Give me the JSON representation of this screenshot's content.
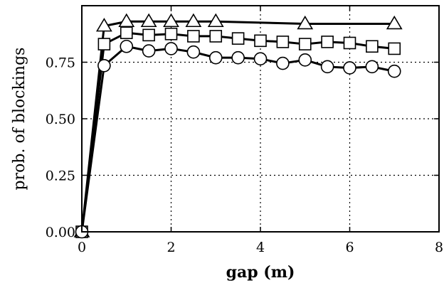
{
  "chart_data": {
    "type": "line",
    "title": "",
    "xlabel": "gap (m)",
    "ylabel": "prob. of blockings",
    "xlim": [
      0,
      8
    ],
    "ylim": [
      0,
      1
    ],
    "xticks": [
      0,
      2,
      4,
      6,
      8
    ],
    "xtick_labels": [
      "0",
      "2",
      "4",
      "6",
      "8"
    ],
    "yticks": [
      0,
      0.25,
      0.5,
      0.75
    ],
    "ytick_labels": [
      "0.00",
      "0.25",
      "0.50",
      "0.75"
    ],
    "grid": true,
    "legend": "none",
    "series": [
      {
        "marker": "triangle",
        "x": [
          0,
          0.5,
          1,
          1.5,
          2,
          2.5,
          3,
          5,
          7
        ],
        "y": [
          0,
          0.91,
          0.93,
          0.93,
          0.93,
          0.93,
          0.93,
          0.92,
          0.92
        ]
      },
      {
        "marker": "square",
        "x": [
          0,
          0.5,
          1,
          1.5,
          2,
          2.5,
          3,
          3.5,
          4,
          4.5,
          5,
          5.5,
          6,
          6.5,
          7
        ],
        "y": [
          0,
          0.83,
          0.88,
          0.87,
          0.875,
          0.865,
          0.865,
          0.855,
          0.845,
          0.84,
          0.83,
          0.84,
          0.835,
          0.82,
          0.81
        ]
      },
      {
        "marker": "circle",
        "x": [
          0,
          0.5,
          1,
          1.5,
          2,
          2.5,
          3,
          3.5,
          4,
          4.5,
          5,
          5.5,
          6,
          6.5,
          7
        ],
        "y": [
          0,
          0.735,
          0.82,
          0.8,
          0.81,
          0.795,
          0.77,
          0.77,
          0.765,
          0.745,
          0.76,
          0.73,
          0.725,
          0.73,
          0.71
        ]
      }
    ]
  }
}
